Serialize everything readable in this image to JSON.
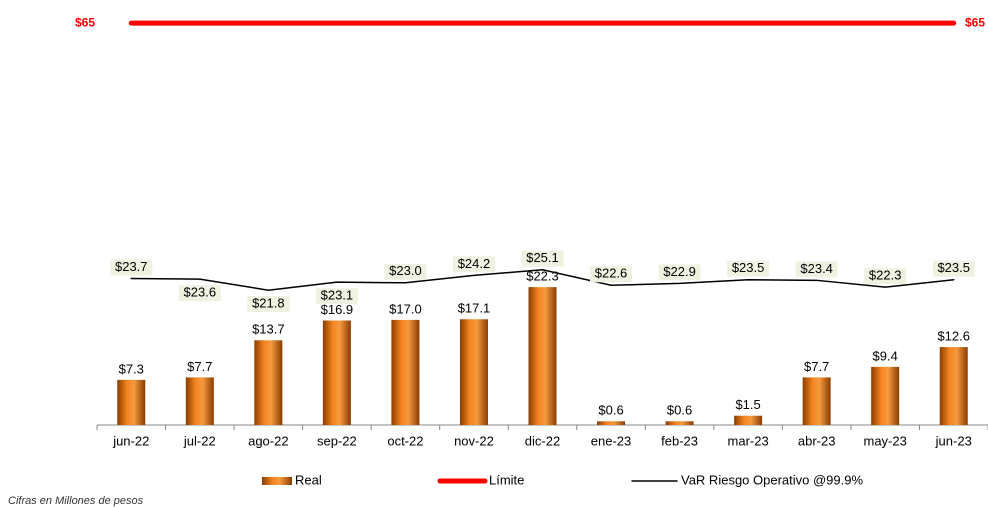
{
  "chart_data": {
    "type": "bar",
    "categories": [
      "jun-22",
      "jul-22",
      "ago-22",
      "sep-22",
      "oct-22",
      "nov-22",
      "dic-22",
      "ene-23",
      "feb-23",
      "mar-23",
      "abr-23",
      "may-23",
      "jun-23"
    ],
    "series": [
      {
        "name": "Real",
        "type": "bar",
        "color": "#e8730c",
        "values": [
          7.3,
          7.7,
          13.7,
          16.9,
          17.0,
          17.1,
          22.3,
          0.6,
          0.6,
          1.5,
          7.7,
          9.4,
          12.6
        ],
        "value_labels": [
          "$7.3",
          "$7.7",
          "$13.7",
          "$16.9",
          "$17.0",
          "$17.1",
          "$22.3",
          "$0.6",
          "$0.6",
          "$1.5",
          "$7.7",
          "$9.4",
          "$12.6"
        ]
      },
      {
        "name": "Límite",
        "type": "line",
        "color": "#ff0000",
        "values": [
          65,
          65,
          65,
          65,
          65,
          65,
          65,
          65,
          65,
          65,
          65,
          65,
          65
        ],
        "value_labels": [
          "$65",
          null,
          null,
          null,
          null,
          null,
          null,
          null,
          null,
          null,
          null,
          null,
          "$65"
        ]
      },
      {
        "name": "VaR Riesgo Operativo @99.9%",
        "type": "line",
        "color": "#000000",
        "values": [
          23.7,
          23.6,
          21.8,
          23.1,
          23.0,
          24.2,
          25.1,
          22.6,
          22.9,
          23.5,
          23.4,
          22.3,
          23.5
        ],
        "value_labels": [
          "$23.7",
          "$23.6",
          "$21.8",
          "$23.1",
          "$23.0",
          "$24.2",
          "$25.1",
          "$22.6",
          "$22.9",
          "$23.5",
          "$23.4",
          "$22.3",
          "$23.5"
        ]
      }
    ],
    "ylim": [
      0,
      65.5
    ],
    "footnote": "Cifras en Millones de pesos"
  }
}
